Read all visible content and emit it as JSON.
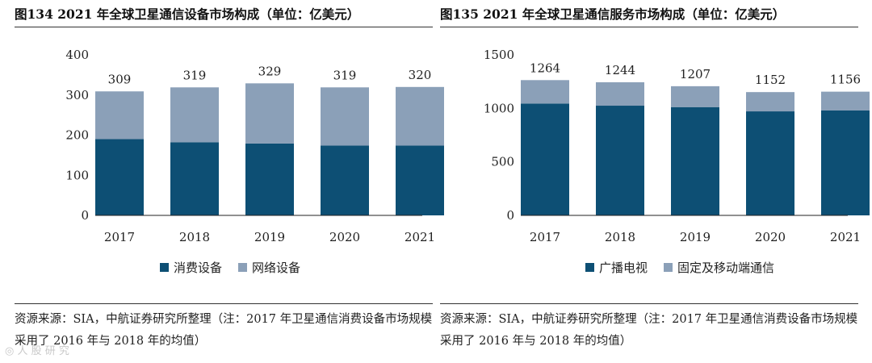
{
  "colors": {
    "bottom": "#0d4f74",
    "top": "#8ba0b8",
    "axis": "#222222",
    "text": "#222222"
  },
  "charts": [
    {
      "title": "图134 2021 年全球卫星通信设备市场构成（单位：亿美元）",
      "source_note": "资源来源：SIA，中航证券研究所整理（注：2017 年卫星通信消费设备市场规模采用了 2016 年与 2018 年的均值）",
      "chart_data": {
        "type": "bar",
        "stacked": true,
        "categories": [
          "2017",
          "2018",
          "2019",
          "2020",
          "2021"
        ],
        "series": [
          {
            "name": "消费设备",
            "values": [
              190,
              182,
              179,
              174,
              174
            ]
          },
          {
            "name": "网络设备",
            "values": [
              119,
              137,
              150,
              145,
              146
            ]
          }
        ],
        "totals": [
          309,
          319,
          329,
          319,
          320
        ],
        "total_labels": [
          "309",
          "319",
          "329",
          "319",
          "320"
        ],
        "yticks": [
          "400",
          "300",
          "200",
          "100",
          "0"
        ],
        "ylim": [
          0,
          400
        ],
        "legend_position": "bottom",
        "title": "",
        "xlabel": "",
        "ylabel": ""
      }
    },
    {
      "title": "图135 2021 年全球卫星通信服务市场构成（单位：亿美元）",
      "source_note": "资源来源：SIA，中航证券研究所整理（注：2017 年卫星通信消费设备市场规模采用了 2016 年与 2018 年的均值）",
      "chart_data": {
        "type": "bar",
        "stacked": true,
        "categories": [
          "2017",
          "2018",
          "2019",
          "2020",
          "2021"
        ],
        "series": [
          {
            "name": "广播电视",
            "values": [
              1045,
              1025,
              1012,
              972,
              980
            ]
          },
          {
            "name": "固定及移动端通信",
            "values": [
              219,
              219,
              195,
              180,
              176
            ]
          }
        ],
        "totals": [
          1264,
          1244,
          1207,
          1152,
          1156
        ],
        "total_labels": [
          "1264",
          "1244",
          "1207",
          "1152",
          "1156"
        ],
        "yticks": [
          "1500",
          "1000",
          "500",
          "0"
        ],
        "ylim": [
          0,
          1500
        ],
        "legend_position": "bottom",
        "title": "",
        "xlabel": "",
        "ylabel": ""
      }
    }
  ],
  "watermark": "◎ 人 股 研 究"
}
